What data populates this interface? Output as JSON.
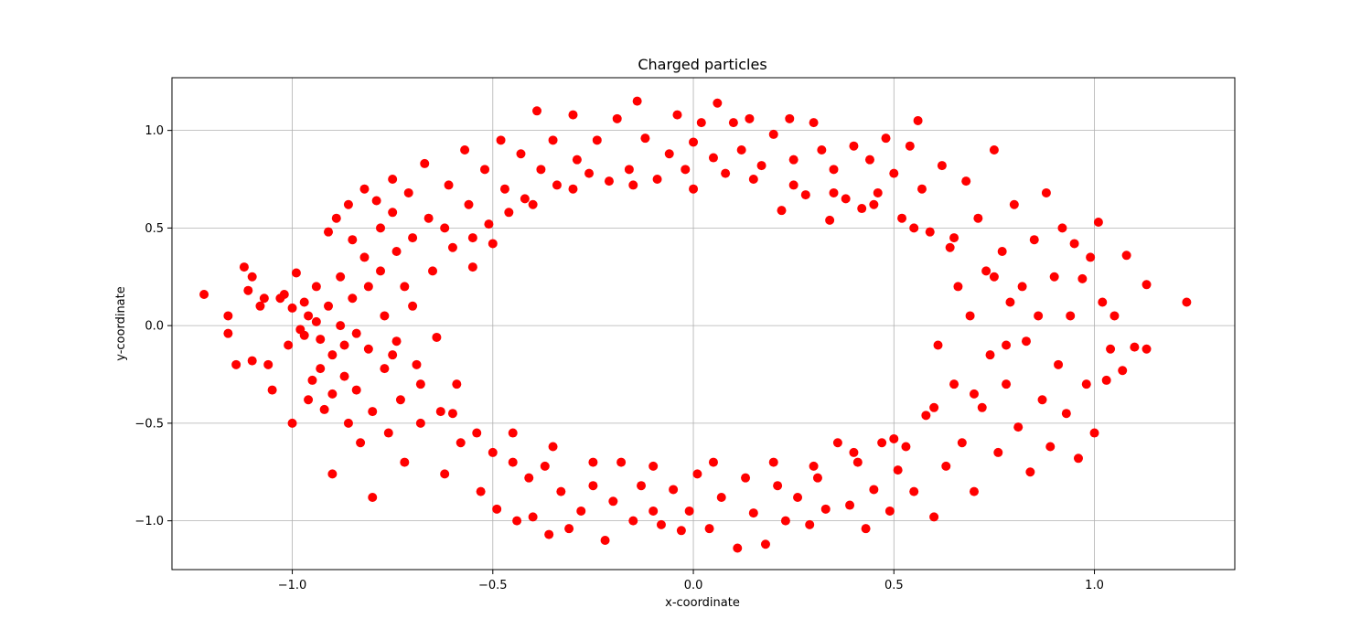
{
  "chart_data": {
    "type": "scatter",
    "title": "Charged particles",
    "xlabel": "x-coordinate",
    "ylabel": "y-coordinate",
    "xlim": [
      -1.3,
      1.35
    ],
    "ylim": [
      -1.25,
      1.27
    ],
    "grid": true,
    "marker_color": "#ff0000",
    "xticks": [
      -1.0,
      -0.5,
      0.0,
      0.5,
      1.0
    ],
    "xtick_labels": [
      "−1.0",
      "−0.5",
      "0.0",
      "0.5",
      "1.0"
    ],
    "yticks": [
      -1.0,
      -0.5,
      0.0,
      0.5,
      1.0
    ],
    "ytick_labels": [
      "−1.0",
      "−0.5",
      "0.0",
      "0.5",
      "1.0"
    ],
    "series": [
      {
        "points": [
          [
            -1.22,
            0.16
          ],
          [
            -1.16,
            0.05
          ],
          [
            -1.16,
            -0.04
          ],
          [
            -1.14,
            -0.2
          ],
          [
            -1.12,
            0.3
          ],
          [
            -1.11,
            0.18
          ],
          [
            -1.1,
            0.25
          ],
          [
            -1.1,
            -0.18
          ],
          [
            -1.08,
            0.1
          ],
          [
            -1.07,
            0.14
          ],
          [
            -1.06,
            -0.2
          ],
          [
            -1.05,
            -0.33
          ],
          [
            -1.03,
            0.14
          ],
          [
            -1.02,
            0.16
          ],
          [
            -1.01,
            -0.1
          ],
          [
            -1.0,
            0.09
          ],
          [
            -1.0,
            -0.5
          ],
          [
            -0.99,
            0.27
          ],
          [
            -0.98,
            -0.02
          ],
          [
            -0.97,
            0.12
          ],
          [
            -0.97,
            -0.05
          ],
          [
            -0.96,
            0.05
          ],
          [
            -0.96,
            -0.38
          ],
          [
            -0.95,
            -0.28
          ],
          [
            -0.94,
            0.2
          ],
          [
            -0.94,
            0.02
          ],
          [
            -0.93,
            -0.07
          ],
          [
            -0.93,
            -0.22
          ],
          [
            -0.92,
            -0.43
          ],
          [
            -0.91,
            0.48
          ],
          [
            -0.91,
            0.1
          ],
          [
            -0.9,
            -0.15
          ],
          [
            -0.9,
            -0.35
          ],
          [
            -0.9,
            -0.76
          ],
          [
            -0.89,
            0.55
          ],
          [
            -0.88,
            0.25
          ],
          [
            -0.88,
            0.0
          ],
          [
            -0.87,
            -0.1
          ],
          [
            -0.87,
            -0.26
          ],
          [
            -0.86,
            -0.5
          ],
          [
            -0.86,
            0.62
          ],
          [
            -0.85,
            0.44
          ],
          [
            -0.85,
            0.14
          ],
          [
            -0.84,
            -0.04
          ],
          [
            -0.84,
            -0.33
          ],
          [
            -0.83,
            -0.6
          ],
          [
            -0.82,
            0.7
          ],
          [
            -0.82,
            0.35
          ],
          [
            -0.81,
            0.2
          ],
          [
            -0.81,
            -0.12
          ],
          [
            -0.8,
            -0.44
          ],
          [
            -0.8,
            -0.88
          ],
          [
            -0.79,
            0.64
          ],
          [
            -0.78,
            0.5
          ],
          [
            -0.78,
            0.28
          ],
          [
            -0.77,
            0.05
          ],
          [
            -0.77,
            -0.22
          ],
          [
            -0.76,
            -0.55
          ],
          [
            -0.75,
            0.75
          ],
          [
            -0.75,
            0.58
          ],
          [
            -0.74,
            0.38
          ],
          [
            -0.74,
            -0.08
          ],
          [
            -0.73,
            -0.38
          ],
          [
            -0.72,
            -0.7
          ],
          [
            -0.71,
            0.68
          ],
          [
            -0.7,
            0.45
          ],
          [
            -0.7,
            0.1
          ],
          [
            -0.69,
            -0.2
          ],
          [
            -0.68,
            -0.5
          ],
          [
            -0.67,
            0.83
          ],
          [
            -0.66,
            0.55
          ],
          [
            -0.65,
            0.28
          ],
          [
            -0.64,
            -0.06
          ],
          [
            -0.63,
            -0.44
          ],
          [
            -0.62,
            -0.76
          ],
          [
            -0.61,
            0.72
          ],
          [
            -0.6,
            0.4
          ],
          [
            -0.59,
            -0.3
          ],
          [
            -0.58,
            -0.6
          ],
          [
            -0.57,
            0.9
          ],
          [
            -0.56,
            0.62
          ],
          [
            -0.55,
            0.45
          ],
          [
            -0.54,
            -0.55
          ],
          [
            -0.53,
            -0.85
          ],
          [
            -0.52,
            0.8
          ],
          [
            -0.51,
            0.52
          ],
          [
            -0.5,
            -0.65
          ],
          [
            -0.49,
            -0.94
          ],
          [
            -0.48,
            0.95
          ],
          [
            -0.47,
            0.7
          ],
          [
            -0.46,
            0.58
          ],
          [
            -0.45,
            -0.7
          ],
          [
            -0.44,
            -1.0
          ],
          [
            -0.43,
            0.88
          ],
          [
            -0.42,
            0.65
          ],
          [
            -0.41,
            -0.78
          ],
          [
            -0.4,
            -0.98
          ],
          [
            -0.39,
            1.1
          ],
          [
            -0.38,
            0.8
          ],
          [
            -0.37,
            -0.72
          ],
          [
            -0.36,
            -1.07
          ],
          [
            -0.35,
            0.95
          ],
          [
            -0.34,
            0.72
          ],
          [
            -0.33,
            -0.85
          ],
          [
            -0.31,
            -1.04
          ],
          [
            -0.3,
            1.08
          ],
          [
            -0.29,
            0.85
          ],
          [
            -0.28,
            -0.95
          ],
          [
            -0.26,
            0.78
          ],
          [
            -0.25,
            -0.82
          ],
          [
            -0.24,
            0.95
          ],
          [
            -0.22,
            -1.1
          ],
          [
            -0.21,
            0.74
          ],
          [
            -0.2,
            -0.9
          ],
          [
            -0.19,
            1.06
          ],
          [
            -0.18,
            -0.7
          ],
          [
            -0.16,
            0.8
          ],
          [
            -0.15,
            -1.0
          ],
          [
            -0.14,
            1.15
          ],
          [
            -0.13,
            -0.82
          ],
          [
            -0.12,
            0.96
          ],
          [
            -0.1,
            -0.95
          ],
          [
            -0.09,
            0.75
          ],
          [
            -0.08,
            -1.02
          ],
          [
            -0.06,
            0.88
          ],
          [
            -0.05,
            -0.84
          ],
          [
            -0.04,
            1.08
          ],
          [
            -0.03,
            -1.05
          ],
          [
            -0.02,
            0.8
          ],
          [
            -0.01,
            -0.95
          ],
          [
            0.0,
            0.94
          ],
          [
            0.01,
            -0.76
          ],
          [
            0.02,
            1.04
          ],
          [
            0.04,
            -1.04
          ],
          [
            0.05,
            0.86
          ],
          [
            0.06,
            1.14
          ],
          [
            0.07,
            -0.88
          ],
          [
            0.08,
            0.78
          ],
          [
            0.1,
            1.04
          ],
          [
            0.11,
            -1.14
          ],
          [
            0.12,
            0.9
          ],
          [
            0.13,
            -0.78
          ],
          [
            0.14,
            1.06
          ],
          [
            0.15,
            -0.96
          ],
          [
            0.17,
            0.82
          ],
          [
            0.18,
            -1.12
          ],
          [
            0.2,
            0.98
          ],
          [
            0.21,
            -0.82
          ],
          [
            0.22,
            0.59
          ],
          [
            0.23,
            -1.0
          ],
          [
            0.24,
            1.06
          ],
          [
            0.25,
            0.85
          ],
          [
            0.26,
            -0.88
          ],
          [
            0.28,
            0.67
          ],
          [
            0.29,
            -1.02
          ],
          [
            0.3,
            1.04
          ],
          [
            0.31,
            -0.78
          ],
          [
            0.32,
            0.9
          ],
          [
            0.33,
            -0.94
          ],
          [
            0.34,
            0.54
          ],
          [
            0.35,
            0.8
          ],
          [
            0.36,
            -0.6
          ],
          [
            0.38,
            0.65
          ],
          [
            0.39,
            -0.92
          ],
          [
            0.4,
            0.92
          ],
          [
            0.41,
            -0.7
          ],
          [
            0.42,
            0.6
          ],
          [
            0.43,
            -1.04
          ],
          [
            0.44,
            0.85
          ],
          [
            0.45,
            -0.84
          ],
          [
            0.46,
            0.68
          ],
          [
            0.47,
            -0.6
          ],
          [
            0.48,
            0.96
          ],
          [
            0.49,
            -0.95
          ],
          [
            0.5,
            0.78
          ],
          [
            0.51,
            -0.74
          ],
          [
            0.52,
            0.55
          ],
          [
            0.53,
            -0.62
          ],
          [
            0.54,
            0.92
          ],
          [
            0.55,
            -0.85
          ],
          [
            0.56,
            1.05
          ],
          [
            0.57,
            0.7
          ],
          [
            0.58,
            -0.46
          ],
          [
            0.59,
            0.48
          ],
          [
            0.6,
            -0.98
          ],
          [
            0.61,
            -0.1
          ],
          [
            0.62,
            0.82
          ],
          [
            0.63,
            -0.72
          ],
          [
            0.64,
            0.4
          ],
          [
            0.65,
            -0.3
          ],
          [
            0.66,
            0.2
          ],
          [
            0.67,
            -0.6
          ],
          [
            0.68,
            0.74
          ],
          [
            0.69,
            0.05
          ],
          [
            0.7,
            -0.85
          ],
          [
            0.71,
            0.55
          ],
          [
            0.72,
            -0.42
          ],
          [
            0.73,
            0.28
          ],
          [
            0.74,
            -0.15
          ],
          [
            0.75,
            0.9
          ],
          [
            0.76,
            -0.65
          ],
          [
            0.77,
            0.38
          ],
          [
            0.78,
            -0.3
          ],
          [
            0.79,
            0.12
          ],
          [
            0.8,
            0.62
          ],
          [
            0.81,
            -0.52
          ],
          [
            0.82,
            0.2
          ],
          [
            0.83,
            -0.08
          ],
          [
            0.84,
            -0.75
          ],
          [
            0.85,
            0.44
          ],
          [
            0.86,
            0.05
          ],
          [
            0.87,
            -0.38
          ],
          [
            0.88,
            0.68
          ],
          [
            0.89,
            -0.62
          ],
          [
            0.9,
            0.25
          ],
          [
            0.91,
            -0.2
          ],
          [
            0.92,
            0.5
          ],
          [
            0.93,
            -0.45
          ],
          [
            0.94,
            0.05
          ],
          [
            0.95,
            0.42
          ],
          [
            0.96,
            -0.68
          ],
          [
            0.97,
            0.24
          ],
          [
            0.98,
            -0.3
          ],
          [
            0.99,
            0.35
          ],
          [
            1.0,
            -0.55
          ],
          [
            1.01,
            0.53
          ],
          [
            1.02,
            0.12
          ],
          [
            1.03,
            -0.28
          ],
          [
            1.04,
            -0.12
          ],
          [
            1.05,
            0.05
          ],
          [
            1.07,
            -0.23
          ],
          [
            1.08,
            0.36
          ],
          [
            1.1,
            -0.11
          ],
          [
            1.13,
            -0.12
          ],
          [
            1.13,
            0.21
          ],
          [
            1.23,
            0.12
          ],
          [
            -0.6,
            -0.45
          ],
          [
            -0.55,
            0.3
          ],
          [
            -0.5,
            0.42
          ],
          [
            -0.45,
            -0.55
          ],
          [
            -0.4,
            0.62
          ],
          [
            -0.35,
            -0.62
          ],
          [
            -0.3,
            0.7
          ],
          [
            -0.25,
            -0.7
          ],
          [
            0.25,
            0.72
          ],
          [
            0.3,
            -0.72
          ],
          [
            0.35,
            0.68
          ],
          [
            0.4,
            -0.65
          ],
          [
            0.45,
            0.62
          ],
          [
            0.5,
            -0.58
          ],
          [
            0.55,
            0.5
          ],
          [
            0.6,
            -0.42
          ],
          [
            -0.62,
            0.5
          ],
          [
            -0.68,
            -0.3
          ],
          [
            -0.72,
            0.2
          ],
          [
            -0.75,
            -0.15
          ],
          [
            0.65,
            0.45
          ],
          [
            0.7,
            -0.35
          ],
          [
            0.75,
            0.25
          ],
          [
            0.78,
            -0.1
          ],
          [
            -0.15,
            0.72
          ],
          [
            -0.1,
            -0.72
          ],
          [
            0.0,
            0.7
          ],
          [
            0.05,
            -0.7
          ],
          [
            0.15,
            0.75
          ],
          [
            0.2,
            -0.7
          ]
        ]
      }
    ]
  }
}
